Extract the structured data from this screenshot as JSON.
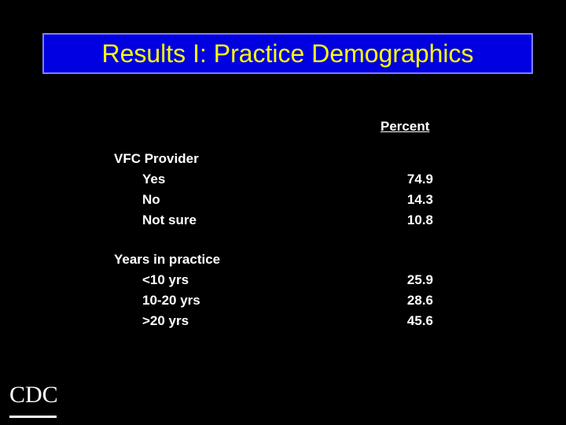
{
  "title": "Results I:  Practice Demographics",
  "table": {
    "header": "Percent",
    "sections": [
      {
        "label": "VFC Provider",
        "rows": [
          [
            "Yes",
            "74.9"
          ],
          [
            "No",
            "14.3"
          ],
          [
            "Not sure",
            "10.8"
          ]
        ]
      },
      {
        "label": "Years in practice",
        "rows": [
          [
            "<10 yrs",
            "25.9"
          ],
          [
            "10-20 yrs",
            "28.6"
          ],
          [
            ">20 yrs",
            "45.6"
          ]
        ]
      }
    ]
  },
  "logo": "CDC"
}
